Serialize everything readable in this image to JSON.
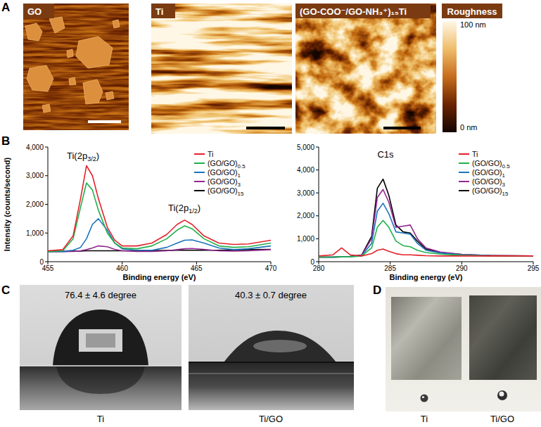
{
  "figure": {
    "panel_labels": [
      "A",
      "B",
      "C",
      "D"
    ],
    "afm_images": [
      {
        "title": "GO"
      },
      {
        "title": "Ti"
      },
      {
        "title": "(GO-COO⁻/GO-NH₃⁺)₁₅Ti"
      }
    ],
    "colorbar": {
      "title": "Roughness",
      "range": [
        0,
        100
      ],
      "ticks": [
        {
          "value": 100,
          "label": "100 nm"
        },
        {
          "value": 0,
          "label": "0 nm"
        }
      ]
    },
    "contact_angle": [
      {
        "annotation": "76.4 ± 4.6 degree",
        "caption": "Ti"
      },
      {
        "annotation": "40.3 ± 0.7 degree",
        "caption": "Ti/GO"
      }
    ],
    "photos": [
      {
        "caption": "Ti"
      },
      {
        "caption": "Ti/GO"
      }
    ]
  },
  "chart_data": [
    {
      "type": "line",
      "x_label": "Binding energy (eV)",
      "y_label": "Intensity (counts/second)",
      "x": [
        455,
        456,
        456.7,
        457.2,
        457.6,
        458,
        458.4,
        459,
        459.5,
        460,
        461,
        462,
        463,
        463.7,
        464.2,
        464.7,
        465.5,
        466.5,
        467.5,
        468.5,
        470
      ],
      "xlim": [
        455,
        470
      ],
      "xticks": [
        455,
        460,
        465,
        470
      ],
      "ylim": [
        0,
        4000
      ],
      "yticks": [
        0,
        {
          "value": 1000,
          "label": "1,000"
        },
        {
          "value": 2000,
          "label": "2,000"
        },
        {
          "value": 3000,
          "label": "3,000"
        },
        {
          "value": 4000,
          "label": "4,000"
        }
      ],
      "legend": "upper right",
      "annotations": [
        {
          "text": "Ti(2p",
          "subscript": "3/2",
          "suffix": ")"
        },
        {
          "text": "Ti(2p",
          "subscript": "1/2",
          "suffix": ")"
        }
      ],
      "series": [
        {
          "name": "Ti",
          "color": "#e4222a",
          "values": [
            380,
            420,
            900,
            2200,
            3350,
            3000,
            2200,
            1200,
            750,
            550,
            550,
            650,
            950,
            1300,
            1450,
            1300,
            900,
            650,
            600,
            620,
            750
          ]
        },
        {
          "name": "(GO/GO)0.5",
          "color": "#21b04b",
          "values": [
            350,
            380,
            800,
            1900,
            2750,
            2500,
            1800,
            1000,
            650,
            480,
            450,
            550,
            800,
            1100,
            1250,
            1150,
            800,
            550,
            500,
            520,
            650
          ]
        },
        {
          "name": "(GO/GO)1",
          "color": "#1c75bc",
          "values": [
            350,
            360,
            400,
            500,
            800,
            1300,
            1500,
            1100,
            650,
            450,
            400,
            400,
            500,
            650,
            750,
            760,
            650,
            480,
            420,
            450,
            550
          ]
        },
        {
          "name": "(GO/GO)3",
          "color": "#92278f",
          "values": [
            350,
            350,
            360,
            380,
            420,
            480,
            550,
            520,
            430,
            380,
            360,
            360,
            380,
            420,
            450,
            460,
            430,
            380,
            370,
            380,
            420
          ]
        },
        {
          "name": "(GO/GO)15",
          "color": "#000000",
          "values": [
            360,
            360,
            370,
            370,
            380,
            380,
            380,
            380,
            380,
            380,
            380,
            390,
            390,
            400,
            400,
            400,
            400,
            400,
            410,
            420,
            430
          ]
        }
      ]
    },
    {
      "type": "line",
      "x_label": "Binding energy (eV)",
      "x": [
        280,
        281,
        281.6,
        282.2,
        283,
        283.7,
        284.1,
        284.5,
        284.9,
        285.4,
        285.9,
        286.4,
        286.9,
        287.5,
        288.5,
        290,
        292,
        295
      ],
      "xlim": [
        280,
        295
      ],
      "xticks": [
        280,
        285,
        290,
        295
      ],
      "ylim": [
        0,
        5000
      ],
      "yticks": [
        0,
        {
          "value": 1000,
          "label": "1,000"
        },
        {
          "value": 2000,
          "label": "2,000"
        },
        {
          "value": 3000,
          "label": "3,000"
        },
        {
          "value": 4000,
          "label": "4,000"
        },
        {
          "value": 5000,
          "label": "5,000"
        }
      ],
      "legend": "upper right",
      "annotations": [
        {
          "text": "C1s"
        }
      ],
      "series": [
        {
          "name": "Ti",
          "color": "#e4222a",
          "values": [
            250,
            300,
            600,
            300,
            250,
            350,
            500,
            550,
            450,
            350,
            300,
            300,
            280,
            260,
            250,
            250,
            250,
            250
          ]
        },
        {
          "name": "(GO/GO)0.5",
          "color": "#21b04b",
          "values": [
            200,
            200,
            210,
            220,
            250,
            600,
            1500,
            1800,
            1500,
            900,
            700,
            650,
            500,
            400,
            330,
            280,
            250,
            250
          ]
        },
        {
          "name": "(GO/GO)1",
          "color": "#1c75bc",
          "values": [
            200,
            200,
            210,
            220,
            260,
            800,
            2200,
            2550,
            2100,
            1300,
            1250,
            1200,
            800,
            500,
            380,
            300,
            260,
            250
          ]
        },
        {
          "name": "(GO/GO)3",
          "color": "#92278f",
          "values": [
            200,
            200,
            210,
            230,
            280,
            1000,
            2800,
            3150,
            2600,
            1500,
            1550,
            1600,
            1000,
            600,
            420,
            320,
            270,
            250
          ]
        },
        {
          "name": "(GO/GO)15",
          "color": "#000000",
          "values": [
            200,
            200,
            210,
            230,
            290,
            1100,
            3200,
            3600,
            2900,
            1600,
            1300,
            1250,
            900,
            550,
            400,
            310,
            270,
            250
          ]
        }
      ]
    }
  ]
}
